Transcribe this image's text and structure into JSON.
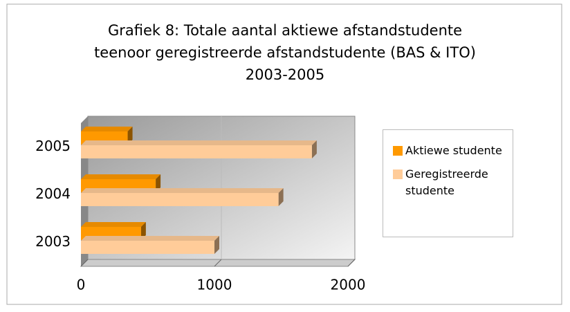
{
  "chart_data": {
    "type": "bar",
    "orientation": "horizontal",
    "title": [
      "Grafiek 8: Totale aantal aktiewe afstandstudente",
      "teenoor geregistreerde afstandstudente (BAS & ITO)",
      "2003-2005"
    ],
    "categories": [
      "2003",
      "2004",
      "2005"
    ],
    "series": [
      {
        "name": "Aktiewe studente",
        "color": "#ff9900",
        "values": [
          450,
          560,
          350
        ]
      },
      {
        "name": "Geregistreerde studente",
        "color": "#ffcc99",
        "values": [
          1000,
          1480,
          1730
        ]
      }
    ],
    "xlim": [
      0,
      2000
    ],
    "xticks": [
      0,
      1000,
      2000
    ],
    "grid": true,
    "legend": "right"
  }
}
